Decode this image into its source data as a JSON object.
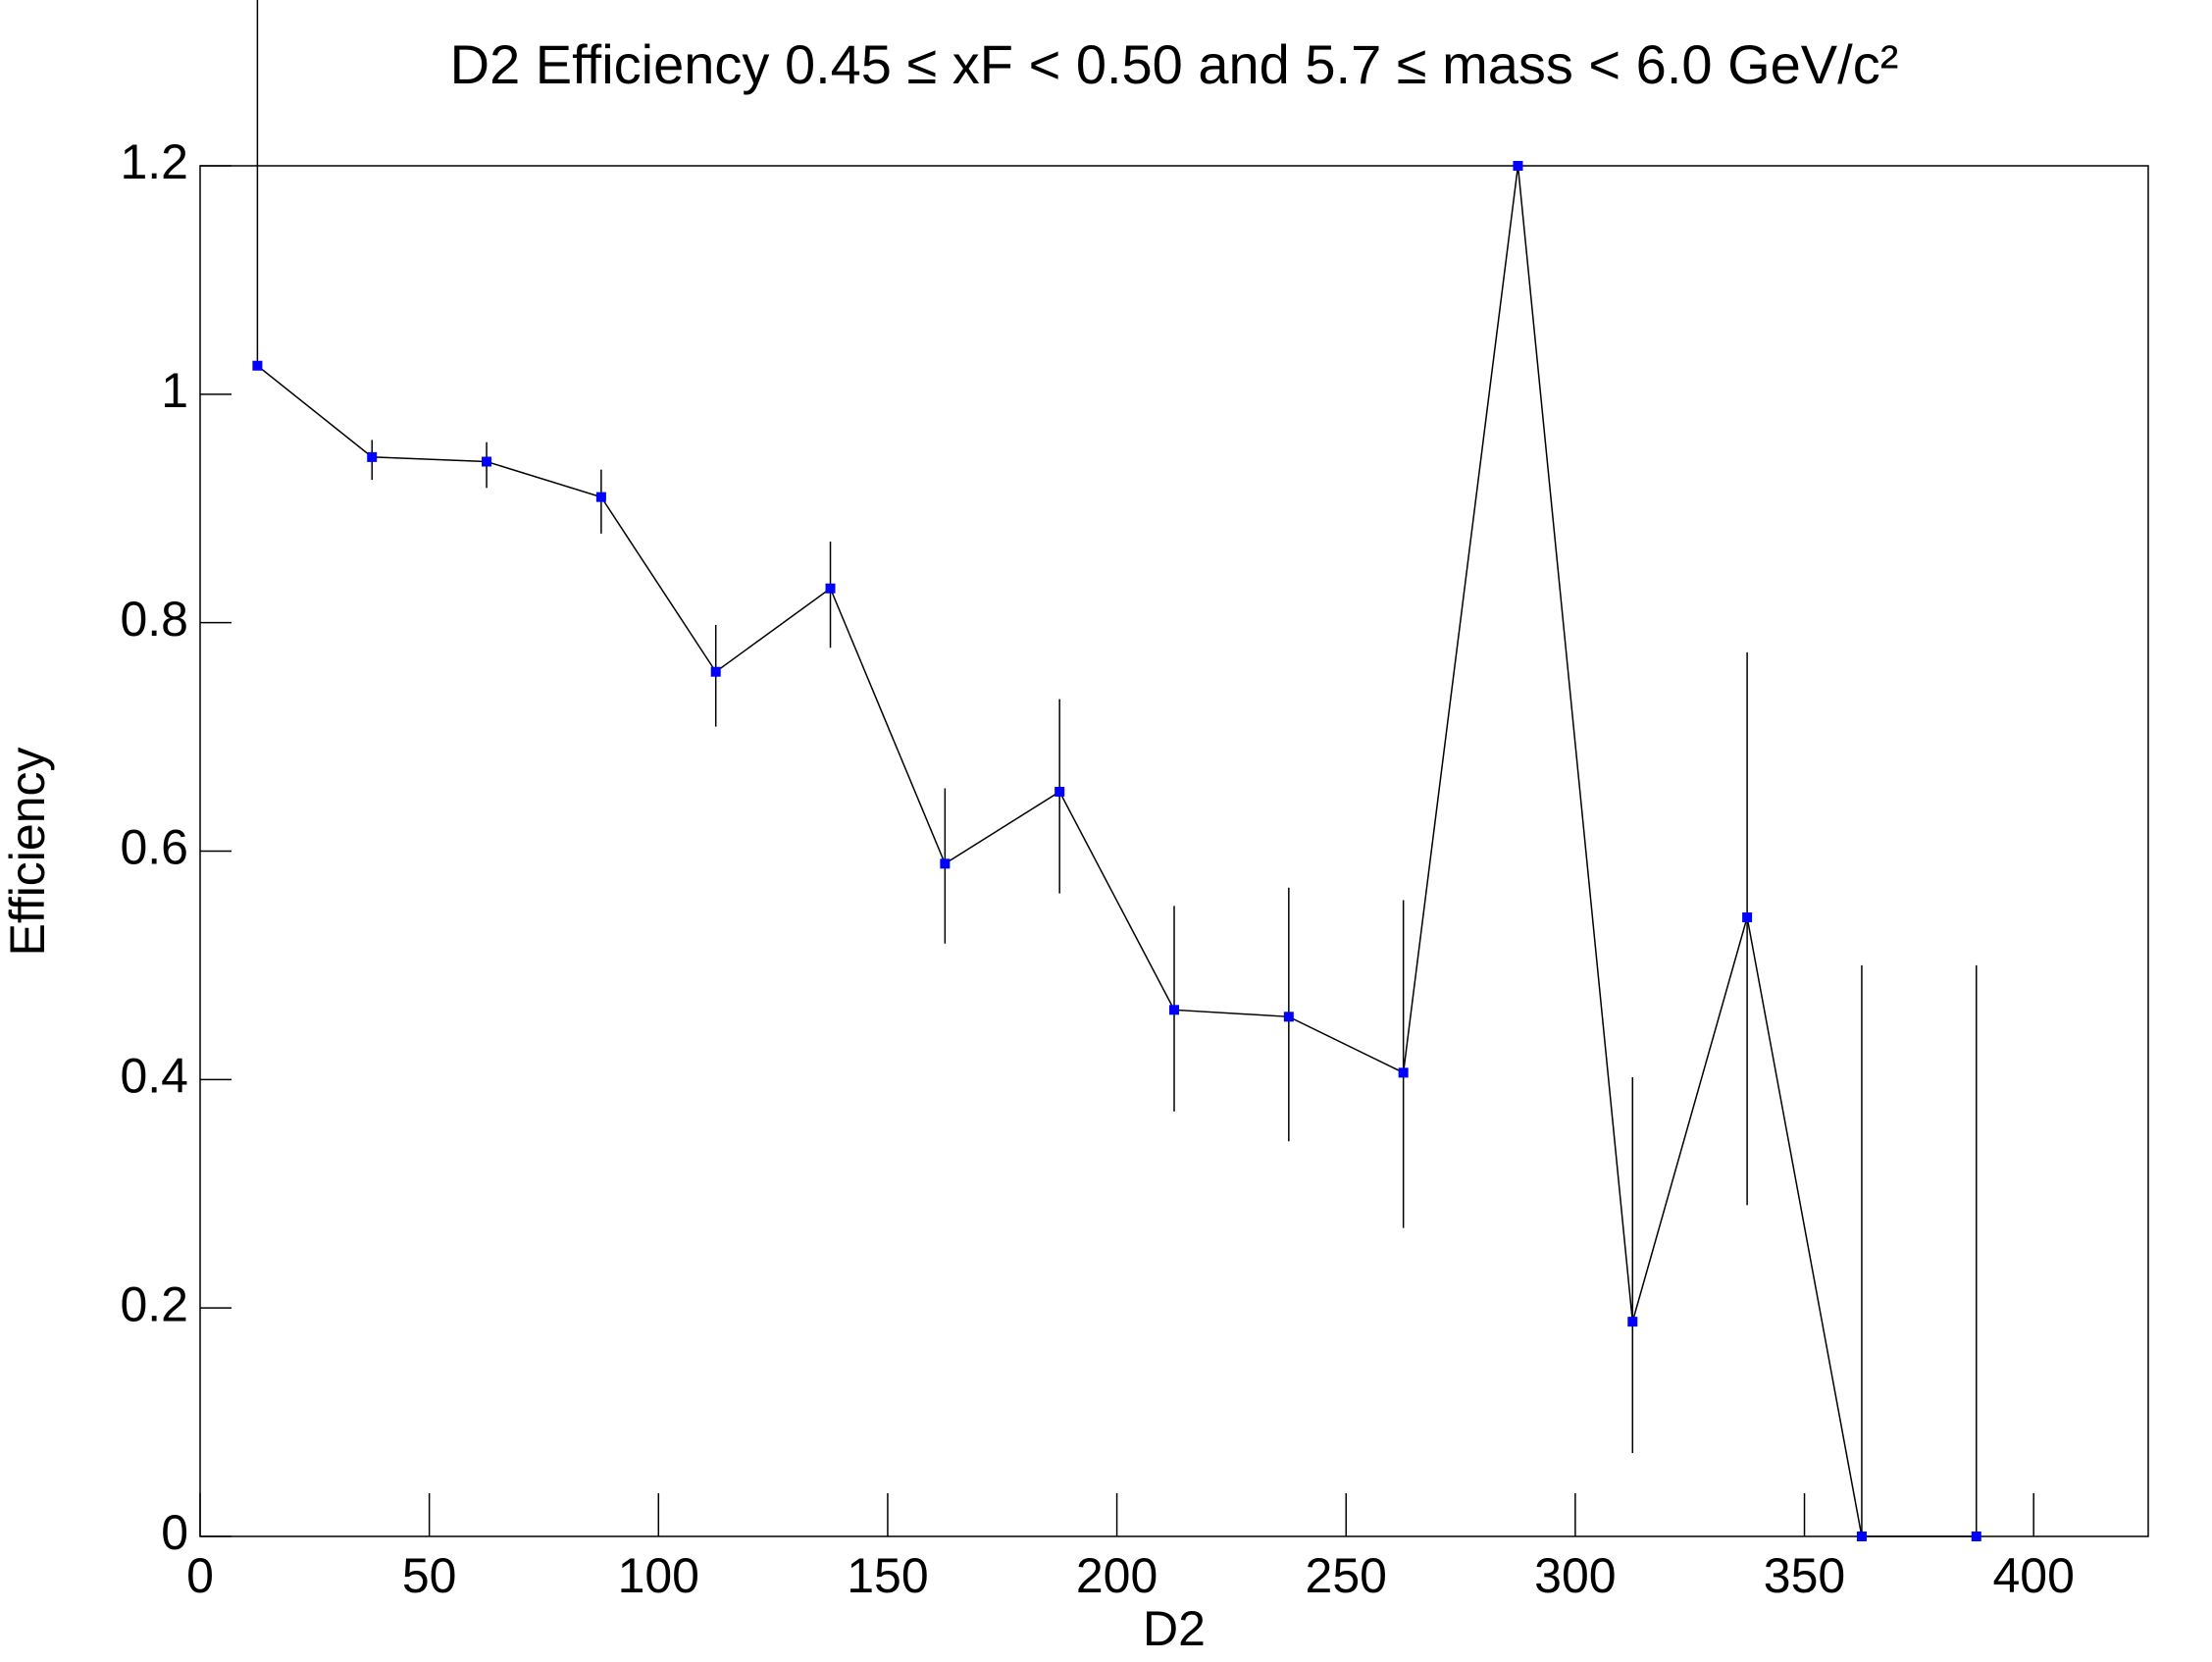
{
  "chart_data": {
    "type": "line",
    "title": "D2 Efficiency 0.45 ≤ xF < 0.50 and 5.7 ≤ mass < 6.0 GeV/c²",
    "xlabel": "D2",
    "ylabel": "Efficiency",
    "x": [
      12.5,
      37.5,
      62.5,
      87.5,
      112.5,
      137.5,
      162.5,
      187.5,
      212.5,
      237.5,
      262.5,
      287.5,
      312.5,
      337.5,
      362.5,
      387.5
    ],
    "values": [
      1.025,
      0.945,
      0.941,
      0.91,
      0.757,
      0.83,
      0.589,
      0.652,
      0.461,
      0.455,
      0.406,
      1.2,
      0.188,
      0.542,
      0,
      0
    ],
    "errors_low": [
      0,
      0.02,
      0.023,
      0.032,
      0.048,
      0.052,
      0.07,
      0.089,
      0.089,
      0.109,
      0.136,
      0,
      0.115,
      0.252,
      0,
      0
    ],
    "errors_high": [
      0.35,
      0.015,
      0.017,
      0.024,
      0.041,
      0.041,
      0.066,
      0.081,
      0.091,
      0.113,
      0.151,
      0,
      0.214,
      0.232,
      0.5,
      0.5
    ],
    "color": "#0000ff",
    "line_color": "#000000",
    "xlim": [
      0,
      425
    ],
    "ylim": [
      0,
      1.2
    ],
    "xticks": [
      0,
      50,
      100,
      150,
      200,
      250,
      300,
      350,
      400
    ],
    "yticks": [
      0,
      0.2,
      0.4,
      0.6,
      0.8,
      1,
      1.2
    ]
  }
}
